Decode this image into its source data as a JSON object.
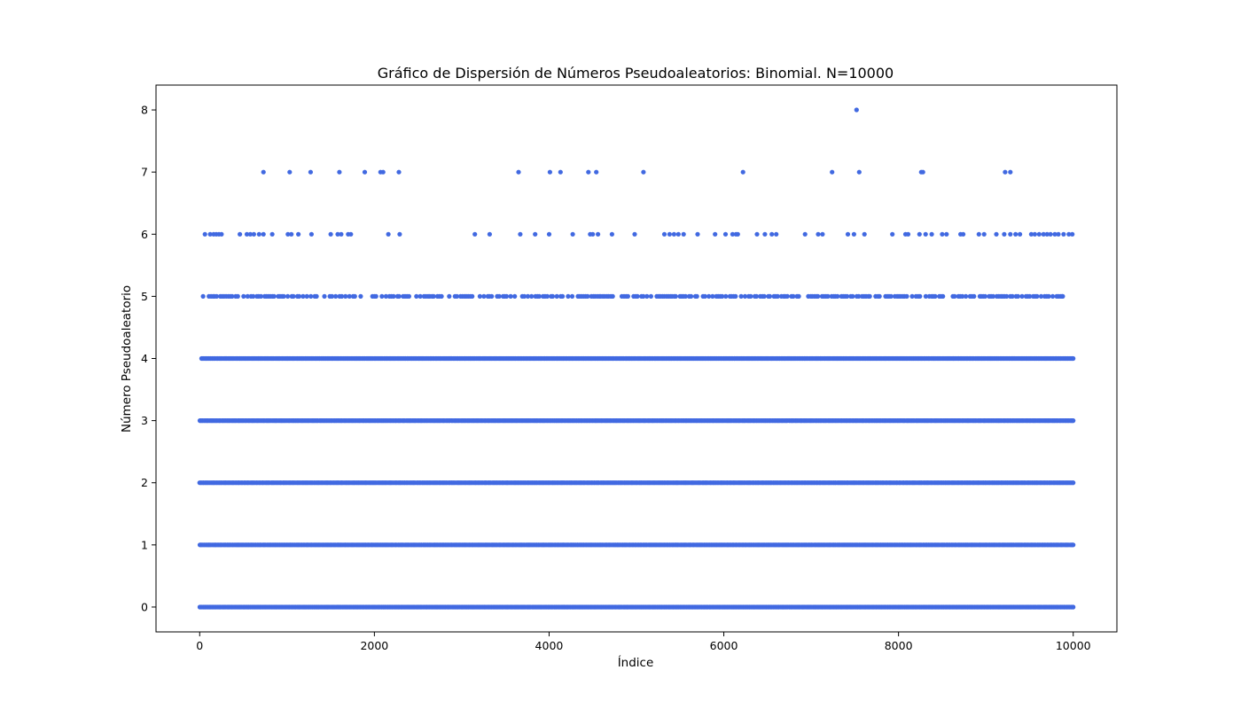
{
  "chart_data": {
    "type": "scatter",
    "title": "Gráfico de Dispersión de Números Pseudoaleatorios: Binomial. N=10000",
    "xlabel": "Índice",
    "ylabel": "Número Pseudoaleatorio",
    "xlim": [
      -500,
      10500
    ],
    "ylim": [
      -0.4,
      8.4
    ],
    "xticks": [
      0,
      2000,
      4000,
      6000,
      8000,
      10000
    ],
    "yticks": [
      0,
      1,
      2,
      3,
      4,
      5,
      6,
      7,
      8
    ],
    "grid": false,
    "legend": "none",
    "point_color": "#4169e1",
    "n_points": 10000,
    "series": [
      {
        "values_by_level": [
          {
            "y": 0,
            "x_range": [
              0,
              10000
            ],
            "description": "dense band"
          },
          {
            "y": 1,
            "x_range": [
              0,
              10000
            ],
            "description": "dense band"
          },
          {
            "y": 2,
            "x_range": [
              0,
              10000
            ],
            "description": "dense band"
          },
          {
            "y": 3,
            "x_range": [
              0,
              10000
            ],
            "description": "dense band"
          },
          {
            "y": 4,
            "x_range": [
              20,
              10000
            ],
            "description": "dense band"
          },
          {
            "y": 5,
            "x_range": [
              40,
              9880
            ],
            "description": "semi-dense band"
          },
          {
            "y": 6,
            "points": [
              60,
              120,
              160,
              190,
              220,
              250,
              460,
              540,
              580,
              620,
              680,
              730,
              830,
              1010,
              1050,
              1130,
              1280,
              1500,
              1580,
              1620,
              1700,
              1730,
              2160,
              2290,
              3150,
              3320,
              3670,
              3840,
              4000,
              4270,
              4470,
              4500,
              4560,
              4720,
              4980,
              5320,
              5380,
              5430,
              5480,
              5540,
              5700,
              5900,
              6020,
              6100,
              6140,
              6160,
              6380,
              6470,
              6550,
              6600,
              6930,
              7080,
              7130,
              7420,
              7490,
              7610,
              7930,
              8080,
              8110,
              8240,
              8310,
              8380,
              8500,
              8550,
              8710,
              8740,
              8920,
              8980,
              9120,
              9210,
              9280,
              9340,
              9390,
              9520,
              9560,
              9610,
              9660,
              9700,
              9740,
              9790,
              9830,
              9890,
              9950,
              9990
            ]
          },
          {
            "y": 7,
            "points": [
              730,
              1030,
              1270,
              1600,
              1890,
              2070,
              2100,
              2280,
              3650,
              4010,
              4130,
              4450,
              4540,
              5080,
              6220,
              7240,
              7550,
              8260,
              8280,
              9220,
              9280
            ]
          },
          {
            "y": 8,
            "points": [
              7520
            ]
          }
        ]
      }
    ]
  }
}
